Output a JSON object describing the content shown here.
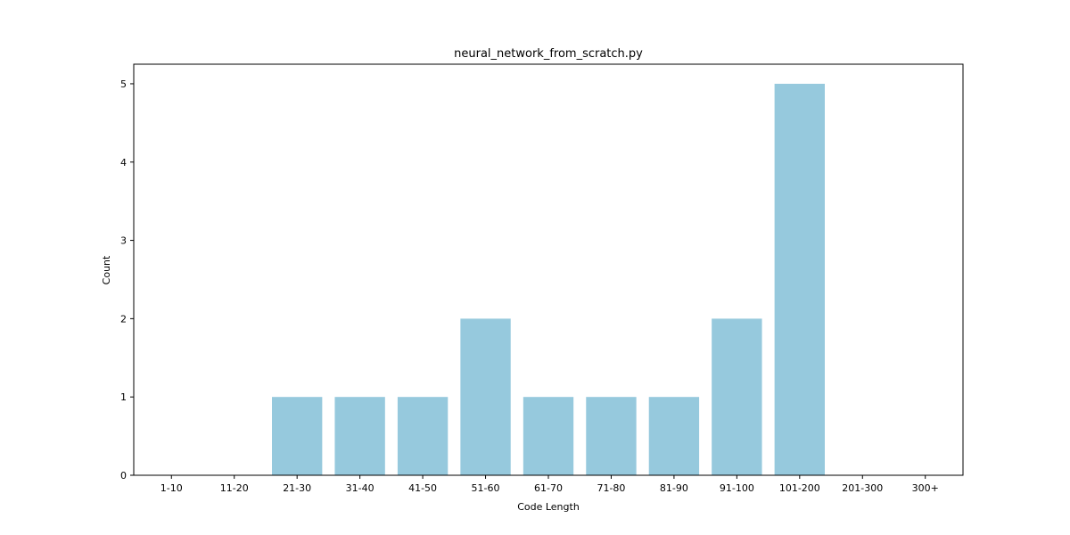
{
  "chart_data": {
    "type": "bar",
    "title": "neural_network_from_scratch.py",
    "xlabel": "Code Length",
    "ylabel": "Count",
    "categories": [
      "1-10",
      "11-20",
      "21-30",
      "31-40",
      "41-50",
      "51-60",
      "61-70",
      "71-80",
      "81-90",
      "91-100",
      "101-200",
      "201-300",
      "300+"
    ],
    "values": [
      0,
      0,
      1,
      1,
      1,
      2,
      1,
      1,
      1,
      2,
      5,
      0,
      0
    ],
    "ylim": [
      0,
      5.25
    ],
    "yticks": [
      0,
      1,
      2,
      3,
      4,
      5
    ],
    "bar_color": "#96c9dd",
    "grid": false,
    "legend": "none"
  }
}
